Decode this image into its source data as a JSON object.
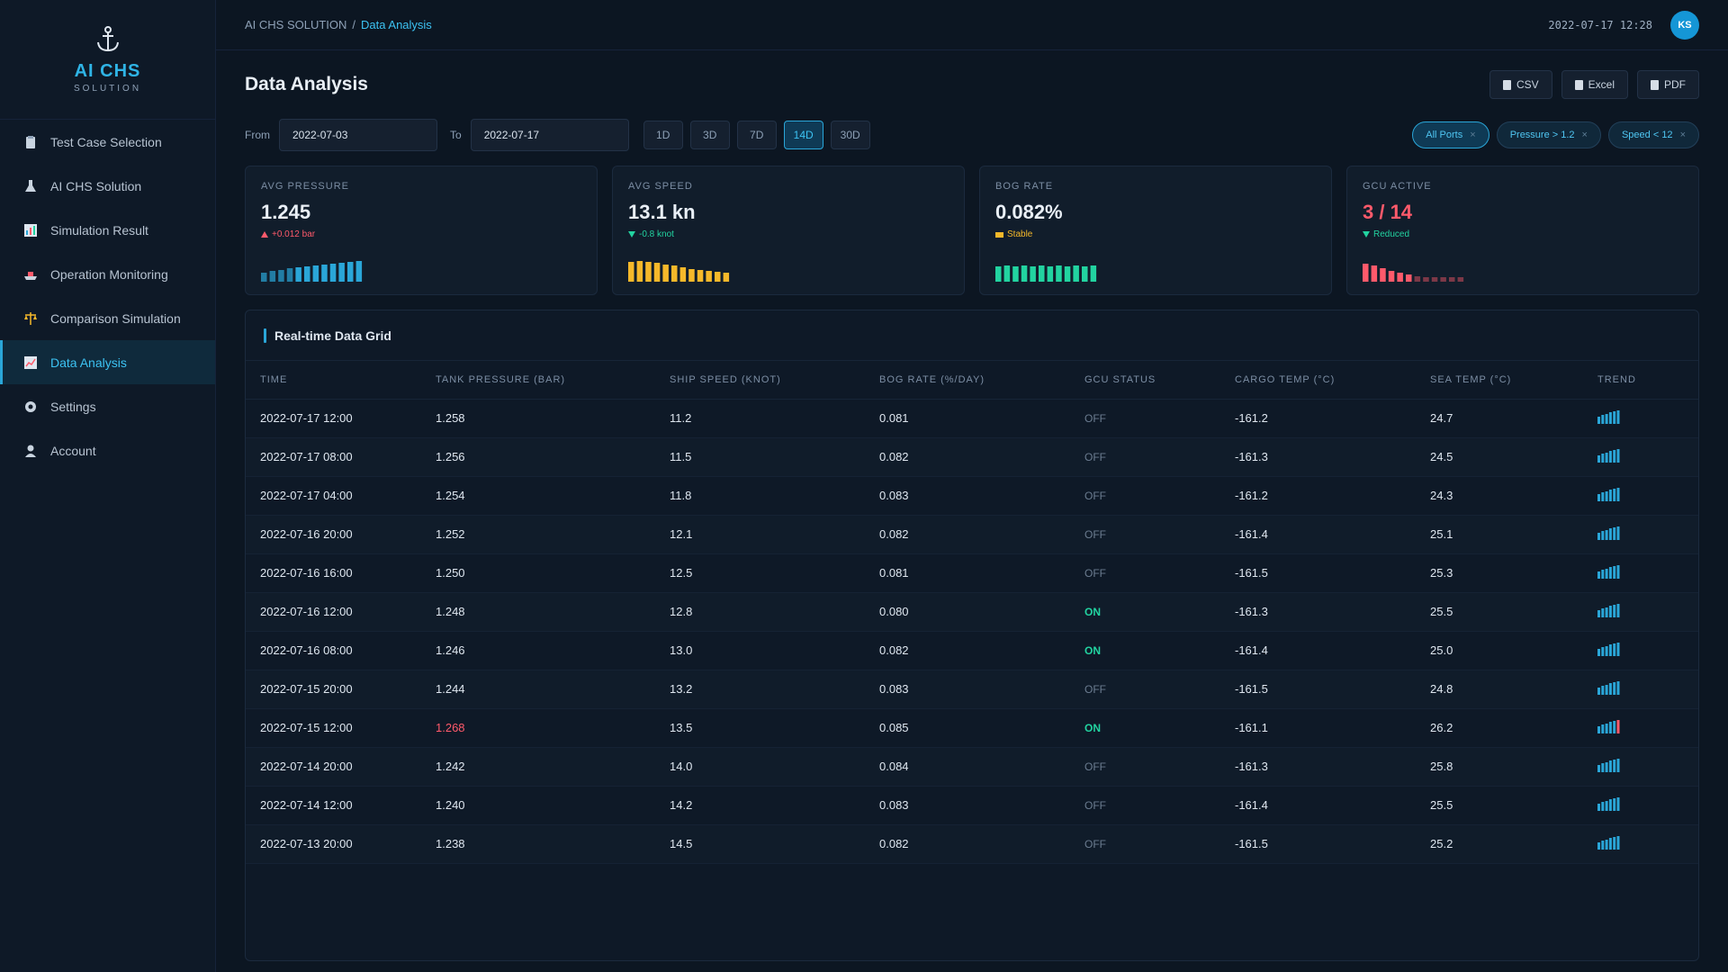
{
  "logo": {
    "brand": "AI CHS",
    "sub": "SOLUTION"
  },
  "nav": [
    {
      "label": "Test Case Selection",
      "icon": "clipboard-icon"
    },
    {
      "label": "AI CHS Solution",
      "icon": "flask-icon"
    },
    {
      "label": "Simulation Result",
      "icon": "bar-chart-icon"
    },
    {
      "label": "Operation Monitoring",
      "icon": "ship-icon"
    },
    {
      "label": "Comparison Simulation",
      "icon": "scale-icon"
    },
    {
      "label": "Data Analysis",
      "icon": "line-chart-icon"
    },
    {
      "label": "Settings",
      "icon": "gear-icon"
    },
    {
      "label": "Account",
      "icon": "user-icon"
    }
  ],
  "breadcrumb": {
    "root": "AI CHS SOLUTION",
    "sep": "/",
    "current": "Data Analysis"
  },
  "header": {
    "datetime": "2022-07-17 12:28",
    "avatar": "KS"
  },
  "page": {
    "title": "Data Analysis"
  },
  "exports": [
    "CSV",
    "Excel",
    "PDF"
  ],
  "filters": {
    "from_label": "From",
    "from": "2022-07-03",
    "to_label": "To",
    "to": "2022-07-17",
    "ranges": [
      "1D",
      "3D",
      "7D",
      "14D",
      "30D"
    ],
    "active_range": "14D",
    "chips": [
      "All Ports",
      "Pressure > 1.2",
      "Speed < 12"
    ],
    "chip_close": "×"
  },
  "cards": [
    {
      "label": "AVG PRESSURE",
      "value": "1.245",
      "delta": "+0.012 bar",
      "delta_dir": "up",
      "delta_color": "#ff5a6b",
      "spark_color": "#2aa6d8",
      "value_color": "#e9eff6"
    },
    {
      "label": "AVG SPEED",
      "value": "13.1 kn",
      "delta": "-0.8 knot",
      "delta_dir": "down",
      "delta_color": "#22d3a0",
      "spark_color": "#f5b82a",
      "value_color": "#e9eff6"
    },
    {
      "label": "BOG RATE",
      "value": "0.082%",
      "delta": "Stable",
      "delta_dir": "flat",
      "delta_color": "#f5b82a",
      "spark_color": "#22d3a0",
      "value_color": "#e9eff6"
    },
    {
      "label": "GCU ACTIVE",
      "value": "3 / 14",
      "delta": "Reduced",
      "delta_dir": "down",
      "delta_color": "#22d3a0",
      "spark_color": "#ff5a6b",
      "value_color": "#ff5a6b"
    }
  ],
  "grid": {
    "title": "Real-time Data Grid",
    "columns": [
      "TIME",
      "TANK PRESSURE (BAR)",
      "SHIP SPEED (KNOT)",
      "BOG RATE (%/DAY)",
      "GCU STATUS",
      "CARGO TEMP (°C)",
      "SEA TEMP (°C)",
      "TREND"
    ],
    "rows": [
      [
        "2022-07-17 12:00",
        "1.258",
        "11.2",
        "0.081",
        "OFF",
        "-161.2",
        "24.7"
      ],
      [
        "2022-07-17 08:00",
        "1.256",
        "11.5",
        "0.082",
        "OFF",
        "-161.3",
        "24.5"
      ],
      [
        "2022-07-17 04:00",
        "1.254",
        "11.8",
        "0.083",
        "OFF",
        "-161.2",
        "24.3"
      ],
      [
        "2022-07-16 20:00",
        "1.252",
        "12.1",
        "0.082",
        "OFF",
        "-161.4",
        "25.1"
      ],
      [
        "2022-07-16 16:00",
        "1.250",
        "12.5",
        "0.081",
        "OFF",
        "-161.5",
        "25.3"
      ],
      [
        "2022-07-16 12:00",
        "1.248",
        "12.8",
        "0.080",
        "ON",
        "-161.3",
        "25.5"
      ],
      [
        "2022-07-16 08:00",
        "1.246",
        "13.0",
        "0.082",
        "ON",
        "-161.4",
        "25.0"
      ],
      [
        "2022-07-15 20:00",
        "1.244",
        "13.2",
        "0.083",
        "OFF",
        "-161.5",
        "24.8"
      ],
      [
        "2022-07-15 12:00",
        "1.268",
        "13.5",
        "0.085",
        "ON",
        "-161.1",
        "26.2"
      ],
      [
        "2022-07-14 20:00",
        "1.242",
        "14.0",
        "0.084",
        "OFF",
        "-161.3",
        "25.8"
      ],
      [
        "2022-07-14 12:00",
        "1.240",
        "14.2",
        "0.083",
        "OFF",
        "-161.4",
        "25.5"
      ],
      [
        "2022-07-13 20:00",
        "1.238",
        "14.5",
        "0.082",
        "OFF",
        "-161.5",
        "25.2"
      ]
    ],
    "highlight_row": 8
  }
}
